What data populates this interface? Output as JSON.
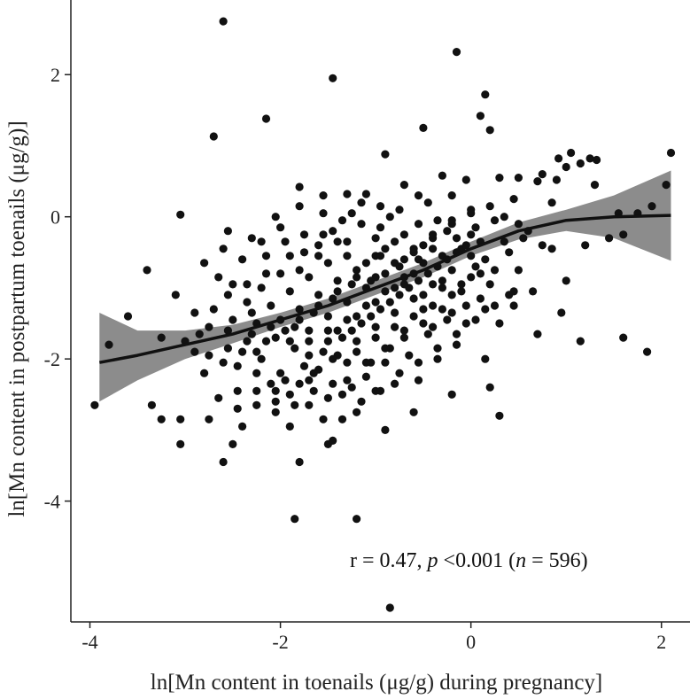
{
  "chart_data": {
    "type": "scatter",
    "title": "",
    "xlabel": "ln[Mn content in toenails (μg/g) during pregnancy]",
    "ylabel": "ln[Mn content in postpartum toenails (μg/g)]",
    "xlim": [
      -4.2,
      2.3
    ],
    "ylim": [
      -5.7,
      3.05
    ],
    "x_ticks": [
      -4,
      -2,
      0,
      2
    ],
    "y_ticks": [
      -4,
      -2,
      0,
      2
    ],
    "x_tick_labels": [
      "-4",
      "-2",
      "0",
      "2"
    ],
    "y_tick_labels": [
      "-4",
      "-2",
      "0",
      "2"
    ],
    "grid": false,
    "legend": "none",
    "colors": {
      "points": "#111111",
      "band": "#8c8c8c",
      "line": "#111111",
      "axis": "#222222"
    },
    "annotation": {
      "r_text": "r = 0.47, ",
      "p_symbol": "p",
      "p_text": " <0.001 (",
      "n_symbol": "n",
      "n_text": " = 596)"
    },
    "points": [
      [
        -2.6,
        2.75
      ],
      [
        -0.15,
        2.32
      ],
      [
        -1.45,
        1.95
      ],
      [
        0.15,
        1.72
      ],
      [
        -2.15,
        1.38
      ],
      [
        0.1,
        1.42
      ],
      [
        -2.7,
        1.13
      ],
      [
        0.2,
        1.22
      ],
      [
        -0.5,
        1.25
      ],
      [
        -0.9,
        0.88
      ],
      [
        1.05,
        0.9
      ],
      [
        0.92,
        0.82
      ],
      [
        1.25,
        0.82
      ],
      [
        1.32,
        0.8
      ],
      [
        2.1,
        0.9
      ],
      [
        1.15,
        0.75
      ],
      [
        1.0,
        0.7
      ],
      [
        0.75,
        0.6
      ],
      [
        0.9,
        0.52
      ],
      [
        2.05,
        0.45
      ],
      [
        -3.05,
        0.03
      ],
      [
        -2.55,
        -0.2
      ],
      [
        -1.8,
        0.42
      ],
      [
        -1.55,
        0.3
      ],
      [
        -1.3,
        0.32
      ],
      [
        -1.1,
        0.32
      ],
      [
        -0.3,
        0.58
      ],
      [
        -0.05,
        0.52
      ],
      [
        0.3,
        0.55
      ],
      [
        0.5,
        0.55
      ],
      [
        0.7,
        0.5
      ],
      [
        1.3,
        0.45
      ],
      [
        1.55,
        0.05
      ],
      [
        1.6,
        -0.25
      ],
      [
        1.75,
        0.05
      ],
      [
        1.9,
        0.15
      ],
      [
        1.45,
        -0.3
      ],
      [
        1.2,
        -0.4
      ],
      [
        0.85,
        -0.45
      ],
      [
        0.75,
        -0.4
      ],
      [
        -3.4,
        -0.75
      ],
      [
        -3.1,
        -1.1
      ],
      [
        -2.65,
        -0.85
      ],
      [
        -2.5,
        -0.95
      ],
      [
        -3.6,
        -1.4
      ],
      [
        -3.8,
        -1.8
      ],
      [
        -3.25,
        -1.7
      ],
      [
        -3.0,
        -1.75
      ],
      [
        -2.85,
        -1.65
      ],
      [
        -3.95,
        -2.65
      ],
      [
        -3.35,
        -2.65
      ],
      [
        -3.25,
        -2.85
      ],
      [
        -3.05,
        -2.85
      ],
      [
        -3.05,
        -3.2
      ],
      [
        -2.75,
        -2.85
      ],
      [
        -2.5,
        -3.2
      ],
      [
        -2.6,
        -3.45
      ],
      [
        -2.4,
        -2.95
      ],
      [
        -1.8,
        -3.45
      ],
      [
        -1.5,
        -3.2
      ],
      [
        -1.45,
        -3.15
      ],
      [
        -1.85,
        -4.25
      ],
      [
        -1.2,
        -4.25
      ],
      [
        -0.85,
        -5.5
      ],
      [
        -0.9,
        -3.0
      ],
      [
        -0.6,
        -2.75
      ],
      [
        -0.2,
        -2.5
      ],
      [
        0.3,
        -2.8
      ],
      [
        0.2,
        -2.4
      ],
      [
        0.15,
        -2.0
      ],
      [
        0.7,
        -1.65
      ],
      [
        0.95,
        -1.35
      ],
      [
        1.15,
        -1.75
      ],
      [
        1.6,
        -1.7
      ],
      [
        1.85,
        -1.9
      ],
      [
        1.0,
        -0.9
      ],
      [
        0.65,
        -1.05
      ],
      [
        0.5,
        -0.75
      ],
      [
        0.4,
        -1.1
      ],
      [
        0.35,
        -0.35
      ],
      [
        0.6,
        -0.2
      ],
      [
        0.85,
        0.2
      ],
      [
        0.45,
        0.25
      ],
      [
        0.0,
        0.1
      ],
      [
        -0.2,
        0.3
      ],
      [
        -0.45,
        0.2
      ],
      [
        -0.7,
        0.45
      ],
      [
        -0.95,
        0.15
      ],
      [
        -1.25,
        0.05
      ],
      [
        -1.55,
        0.05
      ],
      [
        -1.8,
        0.15
      ],
      [
        -2.05,
        0.0
      ],
      [
        -2.3,
        -0.3
      ],
      [
        -2.15,
        -0.55
      ],
      [
        -2.4,
        -0.6
      ],
      [
        -2.6,
        -0.45
      ],
      [
        -2.8,
        -0.65
      ],
      [
        -2.9,
        -1.35
      ],
      [
        -2.75,
        -1.55
      ],
      [
        -2.6,
        -2.05
      ],
      [
        -2.45,
        -2.45
      ],
      [
        -2.25,
        -2.65
      ],
      [
        -2.05,
        -2.75
      ],
      [
        -1.9,
        -2.95
      ],
      [
        -1.7,
        -2.65
      ],
      [
        -1.55,
        -2.85
      ],
      [
        -1.35,
        -2.5
      ],
      [
        -1.2,
        -2.75
      ],
      [
        -1.0,
        -2.45
      ],
      [
        -0.8,
        -2.35
      ],
      [
        -0.55,
        -2.3
      ],
      [
        -0.35,
        -2.0
      ],
      [
        -0.15,
        -1.8
      ],
      [
        -0.05,
        -1.5
      ],
      [
        0.15,
        -1.3
      ],
      [
        0.3,
        -1.5
      ],
      [
        0.45,
        -1.25
      ],
      [
        0.2,
        -0.95
      ],
      [
        0.05,
        -0.7
      ],
      [
        -0.1,
        -0.45
      ],
      [
        -0.25,
        -0.2
      ],
      [
        -0.4,
        -0.45
      ],
      [
        -0.55,
        -0.1
      ],
      [
        -0.7,
        -0.25
      ],
      [
        -0.85,
        0.0
      ],
      [
        -1.0,
        -0.3
      ],
      [
        -1.15,
        -0.1
      ],
      [
        -1.3,
        -0.35
      ],
      [
        -1.45,
        -0.2
      ],
      [
        -1.6,
        -0.4
      ],
      [
        -1.75,
        -0.25
      ],
      [
        -1.9,
        -0.55
      ],
      [
        -2.0,
        -0.8
      ],
      [
        -2.2,
        -1.0
      ],
      [
        -2.35,
        -1.2
      ],
      [
        -2.5,
        -1.45
      ],
      [
        -2.35,
        -1.75
      ],
      [
        -2.2,
        -2.0
      ],
      [
        -2.0,
        -2.2
      ],
      [
        -1.8,
        -2.35
      ],
      [
        -1.6,
        -2.15
      ],
      [
        -1.4,
        -1.95
      ],
      [
        -1.2,
        -1.75
      ],
      [
        -1.0,
        -1.55
      ],
      [
        -0.8,
        -1.35
      ],
      [
        -0.6,
        -1.15
      ],
      [
        -0.4,
        -0.95
      ],
      [
        -0.2,
        -0.75
      ],
      [
        0.0,
        -0.55
      ],
      [
        0.1,
        -0.35
      ],
      [
        -1.7,
        -1.6
      ],
      [
        -1.5,
        -1.4
      ],
      [
        -1.3,
        -1.2
      ],
      [
        -1.1,
        -1.0
      ],
      [
        -0.9,
        -0.8
      ],
      [
        -0.7,
        -0.6
      ],
      [
        -0.5,
        -0.4
      ],
      [
        -0.3,
        -0.9
      ],
      [
        -0.5,
        -1.3
      ],
      [
        -0.7,
        -1.7
      ],
      [
        -0.9,
        -2.05
      ],
      [
        -1.1,
        -2.25
      ],
      [
        -1.3,
        -2.05
      ],
      [
        -1.5,
        -1.75
      ],
      [
        -1.7,
        -1.95
      ],
      [
        -1.9,
        -1.75
      ],
      [
        -2.1,
        -1.55
      ],
      [
        -2.3,
        -1.35
      ],
      [
        -2.1,
        -1.25
      ],
      [
        -1.9,
        -1.05
      ],
      [
        -1.7,
        -0.85
      ],
      [
        -1.5,
        -0.65
      ],
      [
        -1.3,
        -0.55
      ],
      [
        -1.1,
        -0.65
      ],
      [
        -0.9,
        -0.45
      ],
      [
        -0.7,
        -0.85
      ],
      [
        -0.5,
        -0.65
      ],
      [
        -0.3,
        -0.55
      ],
      [
        -0.1,
        -0.95
      ],
      [
        0.1,
        -1.15
      ],
      [
        -1.6,
        -1.1
      ],
      [
        -1.4,
        -0.9
      ],
      [
        -1.2,
        -1.4
      ],
      [
        -1.0,
        -1.2
      ],
      [
        -0.8,
        -1.0
      ],
      [
        -0.6,
        -0.8
      ],
      [
        -1.4,
        -1.6
      ],
      [
        -1.2,
        -1.9
      ],
      [
        -1.0,
        -1.7
      ],
      [
        -0.8,
        -1.55
      ],
      [
        -0.6,
        -1.4
      ],
      [
        -0.4,
        -1.25
      ],
      [
        -0.2,
        -1.1
      ],
      [
        -1.8,
        -1.3
      ],
      [
        -2.0,
        -1.45
      ],
      [
        -1.85,
        -1.85
      ],
      [
        -1.65,
        -2.45
      ],
      [
        -1.45,
        -2.35
      ],
      [
        -1.25,
        -2.4
      ],
      [
        -1.05,
        -2.05
      ],
      [
        -0.85,
        -1.85
      ],
      [
        -0.65,
        -1.95
      ],
      [
        -0.45,
        -1.65
      ],
      [
        -0.25,
        -1.45
      ],
      [
        -0.05,
        -1.25
      ],
      [
        0.0,
        -0.85
      ],
      [
        -0.15,
        -0.3
      ],
      [
        -0.35,
        -0.05
      ],
      [
        -0.55,
        0.3
      ],
      [
        -0.75,
        0.1
      ],
      [
        -0.95,
        -0.15
      ],
      [
        -1.15,
        0.2
      ],
      [
        -1.35,
        -0.05
      ],
      [
        -1.55,
        -0.25
      ],
      [
        -1.75,
        -0.5
      ],
      [
        -1.95,
        -0.35
      ],
      [
        -2.15,
        -0.8
      ],
      [
        -2.35,
        -0.95
      ],
      [
        -2.55,
        -1.1
      ],
      [
        -2.7,
        -1.3
      ],
      [
        -2.55,
        -1.6
      ],
      [
        -2.4,
        -1.9
      ],
      [
        -2.25,
        -2.2
      ],
      [
        -2.05,
        -2.45
      ],
      [
        -1.85,
        -2.65
      ],
      [
        -1.65,
        -2.2
      ],
      [
        -1.45,
        -2.0
      ],
      [
        -1.25,
        -1.6
      ],
      [
        -1.05,
        -1.4
      ],
      [
        -0.85,
        -1.2
      ],
      [
        -0.65,
        -1.0
      ],
      [
        -0.45,
        -0.8
      ],
      [
        -0.25,
        -0.6
      ],
      [
        -0.05,
        -0.4
      ],
      [
        0.05,
        -0.15
      ],
      [
        0.25,
        -0.05
      ],
      [
        0.4,
        -0.5
      ],
      [
        0.55,
        -0.3
      ],
      [
        0.25,
        -0.75
      ],
      [
        0.15,
        -0.6
      ],
      [
        -2.8,
        -2.2
      ],
      [
        -2.65,
        -2.55
      ],
      [
        -2.45,
        -2.7
      ],
      [
        -2.25,
        -2.45
      ],
      [
        -2.05,
        -2.6
      ],
      [
        -1.95,
        -2.3
      ],
      [
        -1.75,
        -2.1
      ],
      [
        -1.55,
        -1.9
      ],
      [
        -1.35,
        -1.7
      ],
      [
        -1.15,
        -1.5
      ],
      [
        -0.95,
        -1.3
      ],
      [
        -0.75,
        -1.1
      ],
      [
        -0.55,
        -0.9
      ],
      [
        -0.35,
        -0.7
      ],
      [
        -0.15,
        -0.5
      ],
      [
        -2.2,
        -0.35
      ],
      [
        -2.0,
        -0.15
      ],
      [
        -1.8,
        -0.75
      ],
      [
        -1.6,
        -0.55
      ],
      [
        -1.4,
        -0.35
      ],
      [
        -1.2,
        -0.75
      ],
      [
        -1.0,
        -0.55
      ],
      [
        -0.8,
        -0.35
      ],
      [
        -0.6,
        -0.5
      ],
      [
        -0.4,
        -0.3
      ],
      [
        -0.2,
        -0.1
      ],
      [
        0.0,
        -0.25
      ],
      [
        0.2,
        0.15
      ],
      [
        0.35,
        0.0
      ],
      [
        0.5,
        -0.1
      ],
      [
        -1.35,
        -2.85
      ],
      [
        -1.15,
        -2.6
      ],
      [
        -0.95,
        -2.45
      ],
      [
        -0.75,
        -2.2
      ],
      [
        -0.55,
        -2.05
      ],
      [
        -0.35,
        -1.85
      ],
      [
        -0.15,
        -1.65
      ],
      [
        0.05,
        -1.45
      ],
      [
        0.25,
        -1.25
      ],
      [
        0.45,
        -1.05
      ],
      [
        -2.9,
        -1.9
      ],
      [
        -2.75,
        -1.95
      ],
      [
        -2.55,
        -1.85
      ],
      [
        -2.3,
        -1.65
      ],
      [
        -2.15,
        -1.75
      ],
      [
        -1.95,
        -1.6
      ],
      [
        -1.8,
        -1.45
      ],
      [
        -1.6,
        -1.25
      ],
      [
        -1.4,
        -1.05
      ],
      [
        -1.2,
        -0.85
      ],
      [
        -1.0,
        -0.85
      ],
      [
        -0.8,
        -0.65
      ],
      [
        -0.6,
        -0.45
      ],
      [
        -0.4,
        -0.25
      ],
      [
        -0.2,
        -0.05
      ],
      [
        0.0,
        0.05
      ],
      [
        -2.45,
        -2.1
      ],
      [
        -2.25,
        -1.9
      ],
      [
        -2.1,
        -2.35
      ],
      [
        -1.9,
        -2.5
      ],
      [
        -1.7,
        -2.3
      ],
      [
        -1.5,
        -2.55
      ],
      [
        -1.3,
        -2.3
      ],
      [
        -1.1,
        -2.05
      ],
      [
        -0.9,
        -1.85
      ],
      [
        -0.7,
        -1.6
      ],
      [
        -0.5,
        -1.5
      ],
      [
        -0.3,
        -1.3
      ],
      [
        -0.1,
        -1.05
      ],
      [
        0.1,
        -0.8
      ],
      [
        -0.95,
        -0.55
      ],
      [
        -0.75,
        -0.7
      ],
      [
        -0.55,
        -0.6
      ],
      [
        -1.05,
        -0.9
      ],
      [
        -1.25,
        -0.95
      ],
      [
        -1.45,
        -1.15
      ],
      [
        -1.65,
        -1.35
      ],
      [
        -1.85,
        -1.55
      ],
      [
        -2.05,
        -1.7
      ],
      [
        -2.25,
        -1.5
      ],
      [
        -1.1,
        -1.25
      ],
      [
        -0.9,
        -1.05
      ],
      [
        -0.7,
        -0.95
      ],
      [
        -0.5,
        -1.1
      ],
      [
        -0.3,
        -1.0
      ],
      [
        -1.3,
        -1.45
      ],
      [
        -1.5,
        -1.6
      ],
      [
        -1.7,
        -1.75
      ],
      [
        -0.4,
        -1.55
      ],
      [
        -0.2,
        -1.35
      ]
    ],
    "smooth_line": [
      [
        -3.9,
        -2.05
      ],
      [
        -3.5,
        -1.95
      ],
      [
        -3.0,
        -1.8
      ],
      [
        -2.5,
        -1.65
      ],
      [
        -2.0,
        -1.45
      ],
      [
        -1.5,
        -1.25
      ],
      [
        -1.0,
        -1.0
      ],
      [
        -0.5,
        -0.75
      ],
      [
        0.0,
        -0.45
      ],
      [
        0.5,
        -0.2
      ],
      [
        1.0,
        -0.05
      ],
      [
        1.5,
        0.0
      ],
      [
        2.1,
        0.02
      ]
    ],
    "band_upper": [
      [
        -3.9,
        -1.35
      ],
      [
        -3.5,
        -1.6
      ],
      [
        -3.0,
        -1.6
      ],
      [
        -2.5,
        -1.52
      ],
      [
        -2.0,
        -1.35
      ],
      [
        -1.5,
        -1.15
      ],
      [
        -1.0,
        -0.9
      ],
      [
        -0.5,
        -0.65
      ],
      [
        0.0,
        -0.35
      ],
      [
        0.5,
        -0.08
      ],
      [
        1.0,
        0.1
      ],
      [
        1.5,
        0.3
      ],
      [
        2.1,
        0.65
      ]
    ],
    "band_lower": [
      [
        -3.9,
        -2.6
      ],
      [
        -3.5,
        -2.3
      ],
      [
        -3.0,
        -2.0
      ],
      [
        -2.5,
        -1.78
      ],
      [
        -2.0,
        -1.55
      ],
      [
        -1.5,
        -1.35
      ],
      [
        -1.0,
        -1.1
      ],
      [
        -0.5,
        -0.85
      ],
      [
        0.0,
        -0.55
      ],
      [
        0.5,
        -0.32
      ],
      [
        1.0,
        -0.2
      ],
      [
        1.5,
        -0.3
      ],
      [
        2.1,
        -0.62
      ]
    ]
  }
}
